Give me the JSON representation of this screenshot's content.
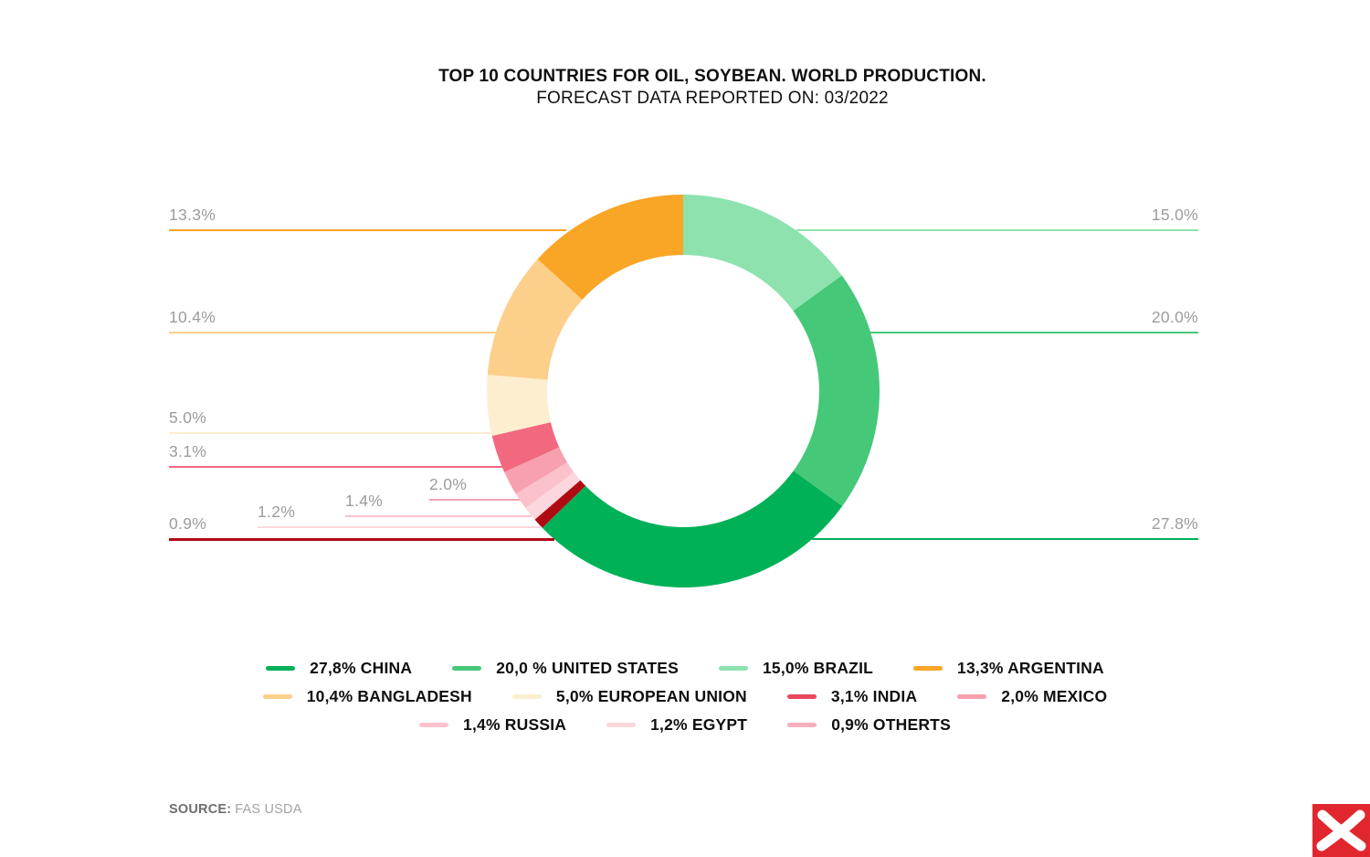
{
  "header": {
    "title": "TOP 10 COUNTRIES FOR OIL, SOYBEAN. WORLD PRODUCTION.",
    "subtitle": "FORECAST DATA REPORTED ON: 03/2022"
  },
  "chart_data": {
    "type": "pie",
    "subtype": "donut",
    "title": "TOP 10 COUNTRIES FOR OIL, SOYBEAN. WORLD PRODUCTION.",
    "subtitle": "FORECAST DATA REPORTED ON: 03/2022",
    "start_angle_deg": -90,
    "direction": "clockwise",
    "donut_hole_ratio": 0.69,
    "legend_position": "bottom",
    "segments": [
      {
        "label": "BRAZIL",
        "value": 15.0,
        "display": "15.0%",
        "color": "#8de2ad",
        "callout_side": "right"
      },
      {
        "label": "UNITED STATES",
        "value": 20.0,
        "display": "20.0%",
        "color": "#45c878",
        "callout_side": "right"
      },
      {
        "label": "CHINA",
        "value": 27.8,
        "display": "27.8%",
        "color": "#00b158",
        "callout_side": "right"
      },
      {
        "label": "OTHERTS",
        "value": 0.9,
        "display": "0.9%",
        "color": "#b00b15",
        "callout_side": "left"
      },
      {
        "label": "EGYPT",
        "value": 1.2,
        "display": "1.2%",
        "color": "#fcd7dd",
        "callout_side": "left"
      },
      {
        "label": "RUSSIA",
        "value": 1.4,
        "display": "1.4%",
        "color": "#fbc2cb",
        "callout_side": "left"
      },
      {
        "label": "MEXICO",
        "value": 2.0,
        "display": "2.0%",
        "color": "#f7a0b0",
        "callout_side": "left"
      },
      {
        "label": "INDIA",
        "value": 3.1,
        "display": "3.1%",
        "color": "#f2697f",
        "callout_side": "left"
      },
      {
        "label": "EUROPEAN UNION",
        "value": 5.0,
        "display": "5.0%",
        "color": "#fdeed0",
        "callout_side": "left"
      },
      {
        "label": "BANGLADESH",
        "value": 10.4,
        "display": "10.4%",
        "color": "#fccf8b",
        "callout_side": "left"
      },
      {
        "label": "ARGENTINA",
        "value": 13.3,
        "display": "13.3%",
        "color": "#f9a525",
        "callout_side": "left"
      }
    ]
  },
  "legend": {
    "rows": [
      [
        {
          "text": "27,8% CHINA",
          "color": "#00b158"
        },
        {
          "text": "20,0 % UNITED STATES",
          "color": "#45c878"
        },
        {
          "text": "15,0% BRAZIL",
          "color": "#8de2ad"
        },
        {
          "text": "13,3% ARGENTINA",
          "color": "#f9a525"
        }
      ],
      [
        {
          "text": "10,4% BANGLADESH",
          "color": "#fccf8b"
        },
        {
          "text": "5,0% EUROPEAN UNION",
          "color": "#fdeed0"
        },
        {
          "text": "3,1% INDIA",
          "color": "#ea465e"
        },
        {
          "text": "2,0% MEXICO",
          "color": "#f7a0b0"
        }
      ],
      [
        {
          "text": "1,4% RUSSIA",
          "color": "#fbc2cb"
        },
        {
          "text": "1,2% EGYPT",
          "color": "#fcd7dd"
        },
        {
          "text": "0,9% OTHERTS",
          "color": "#f5afbc"
        }
      ]
    ]
  },
  "source": {
    "label": "SOURCE:",
    "value": "FAS USDA"
  },
  "logo": {
    "name": "xtb-logo",
    "background": "#e2262e",
    "glyph": "white-x-swoosh"
  }
}
